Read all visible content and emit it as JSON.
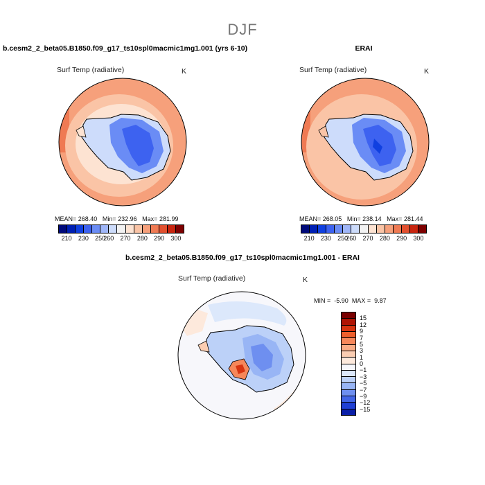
{
  "header": {
    "season": "DJF"
  },
  "panels": {
    "model": {
      "title": "b.cesm2_2_beta05.B1850.f09_g17_ts10spl0macmic1mg1.001 (yrs 6-10)",
      "var_label": "Surf Temp (radiative)",
      "units": "K",
      "stats": {
        "mean_label": "MEAN=",
        "mean": "268.40",
        "min_label": "Min=",
        "min": "232.96",
        "max_label": "Max=",
        "max": "281.99"
      }
    },
    "obs": {
      "title": "ERAI",
      "var_label": "Surf Temp (radiative)",
      "units": "K",
      "stats": {
        "mean_label": "MEAN=",
        "mean": "268.05",
        "min_label": "Min=",
        "min": "238.14",
        "max_label": "Max=",
        "max": "281.44"
      }
    },
    "diff": {
      "title": "b.cesm2_2_beta05.B1850.f09_g17_ts10spl0macmic1mg1.001 - ERAI",
      "var_label": "Surf Temp (radiative)",
      "units": "K",
      "stats": {
        "min_label": "MIN =",
        "min": "-5.90",
        "max_label": "MAX =",
        "max": "9.87"
      }
    }
  },
  "chart_data": [
    {
      "type": "heatmap",
      "projection": "south-polar-stereographic",
      "region": "Antarctica / Southern Ocean",
      "colorbar": {
        "orientation": "horizontal",
        "tick_labels": [
          "210",
          "230",
          "250",
          "260",
          "270",
          "280",
          "290",
          "300"
        ],
        "levels": [
          210,
          220,
          230,
          240,
          250,
          255,
          260,
          265,
          270,
          275,
          280,
          285,
          290,
          295,
          300
        ],
        "colors": [
          "#000a7a",
          "#0020b4",
          "#1040e0",
          "#3d62f0",
          "#6a8cf5",
          "#9fb6f8",
          "#cddcfb",
          "#f2f2f2",
          "#fde3d2",
          "#fac4a6",
          "#f6a07b",
          "#ef7a53",
          "#e2502f",
          "#c8250f",
          "#7d0000"
        ]
      },
      "stats": {
        "mean": 268.4,
        "min": 232.96,
        "max": 281.99
      }
    },
    {
      "type": "heatmap",
      "projection": "south-polar-stereographic",
      "region": "Antarctica / Southern Ocean",
      "colorbar": {
        "orientation": "horizontal",
        "tick_labels": [
          "210",
          "230",
          "250",
          "260",
          "270",
          "280",
          "290",
          "300"
        ],
        "levels": [
          210,
          220,
          230,
          240,
          250,
          255,
          260,
          265,
          270,
          275,
          280,
          285,
          290,
          295,
          300
        ],
        "colors": [
          "#000a7a",
          "#0020b4",
          "#1040e0",
          "#3d62f0",
          "#6a8cf5",
          "#9fb6f8",
          "#cddcfb",
          "#f2f2f2",
          "#fde3d2",
          "#fac4a6",
          "#f6a07b",
          "#ef7a53",
          "#e2502f",
          "#c8250f",
          "#7d0000"
        ]
      },
      "stats": {
        "mean": 268.05,
        "min": 238.14,
        "max": 281.44
      }
    },
    {
      "type": "heatmap",
      "projection": "south-polar-stereographic",
      "region": "Antarctica / Southern Ocean",
      "colorbar": {
        "orientation": "vertical",
        "tick_labels": [
          "15",
          "12",
          "9",
          "7",
          "5",
          "3",
          "1",
          "0",
          "−1",
          "−3",
          "−5",
          "−7",
          "−9",
          "−12",
          "−15"
        ],
        "colors": [
          "#7a0000",
          "#b01404",
          "#d83410",
          "#ee5f2c",
          "#f6875a",
          "#f9ac86",
          "#fbcdb2",
          "#fde9dc",
          "#f7f7fb",
          "#dce8fb",
          "#bcd1f8",
          "#98b5f5",
          "#6e8ff0",
          "#4265e6",
          "#1f3fd4",
          "#0a1fa8"
        ]
      },
      "stats": {
        "min": -5.9,
        "max": 9.87
      }
    }
  ]
}
